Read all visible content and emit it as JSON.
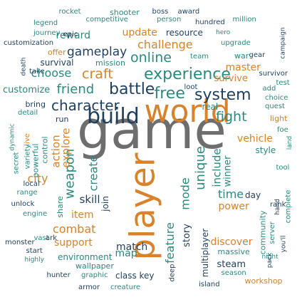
{
  "palette": {
    "teal": "#2a8a7e",
    "orange": "#d9822b",
    "slate": "#1f3f5f",
    "gray": "#6e6e6e"
  },
  "words": [
    {
      "text": "game",
      "color": "gray"
    },
    {
      "text": "world",
      "color": "orange"
    },
    {
      "text": "player",
      "color": "orange"
    },
    {
      "text": "build",
      "color": "slate"
    },
    {
      "text": "experience",
      "color": "teal"
    },
    {
      "text": "system",
      "color": "slate"
    },
    {
      "text": "free",
      "color": "teal"
    },
    {
      "text": "battle",
      "color": "slate"
    },
    {
      "text": "character",
      "color": "slate"
    },
    {
      "text": "friend",
      "color": "teal"
    },
    {
      "text": "customize",
      "color": "teal"
    },
    {
      "text": "craft",
      "color": "orange"
    },
    {
      "text": "choose",
      "color": "teal"
    },
    {
      "text": "online",
      "color": "teal"
    },
    {
      "text": "challenge",
      "color": "orange"
    },
    {
      "text": "gameplay",
      "color": "slate"
    },
    {
      "text": "reward",
      "color": "teal"
    },
    {
      "text": "update",
      "color": "orange"
    },
    {
      "text": "resource",
      "color": "slate"
    },
    {
      "text": "shooter",
      "color": "teal"
    },
    {
      "text": "boss",
      "color": "slate"
    },
    {
      "text": "award",
      "color": "slate"
    },
    {
      "text": "rocket",
      "color": "teal"
    },
    {
      "text": "legend",
      "color": "teal"
    },
    {
      "text": "journey",
      "color": "teal"
    },
    {
      "text": "epic",
      "color": "slate"
    },
    {
      "text": "competitive",
      "color": "teal"
    },
    {
      "text": "person",
      "color": "teal"
    },
    {
      "text": "hundred",
      "color": "slate"
    },
    {
      "text": "million",
      "color": "teal"
    },
    {
      "text": "customization",
      "color": "slate"
    },
    {
      "text": "offer",
      "color": "orange"
    },
    {
      "text": "survival",
      "color": "slate"
    },
    {
      "text": "mission",
      "color": "teal"
    },
    {
      "text": "hero",
      "color": "teal"
    },
    {
      "text": "team",
      "color": "teal"
    },
    {
      "text": "war",
      "color": "teal"
    },
    {
      "text": "gear",
      "color": "slate"
    },
    {
      "text": "upgrade",
      "color": "teal"
    },
    {
      "text": "master",
      "color": "orange"
    },
    {
      "text": "survive",
      "color": "orange"
    },
    {
      "text": "survivor",
      "color": "slate"
    },
    {
      "text": "campaign",
      "color": "slate"
    },
    {
      "text": "take",
      "color": "slate"
    },
    {
      "text": "death",
      "color": "slate"
    },
    {
      "text": "loot",
      "color": "slate"
    },
    {
      "text": "fight",
      "color": "teal"
    },
    {
      "text": "real",
      "color": "teal"
    },
    {
      "text": "bring",
      "color": "slate"
    },
    {
      "text": "detail",
      "color": "teal"
    },
    {
      "text": "run",
      "color": "slate"
    },
    {
      "text": "add",
      "color": "teal"
    },
    {
      "text": "choice",
      "color": "teal"
    },
    {
      "text": "quest",
      "color": "teal"
    },
    {
      "text": "test",
      "color": "teal"
    },
    {
      "text": "light",
      "color": "orange"
    },
    {
      "text": "vehicle",
      "color": "orange"
    },
    {
      "text": "style",
      "color": "teal"
    },
    {
      "text": "tool",
      "color": "teal"
    },
    {
      "text": "land",
      "color": "teal"
    },
    {
      "text": "foe",
      "color": "teal"
    },
    {
      "text": "weapon",
      "color": "teal"
    },
    {
      "text": "explore",
      "color": "orange"
    },
    {
      "text": "action",
      "color": "orange"
    },
    {
      "text": "control",
      "color": "teal"
    },
    {
      "text": "powerful",
      "color": "teal"
    },
    {
      "text": "variety",
      "color": "teal"
    },
    {
      "text": "live",
      "color": "orange"
    },
    {
      "text": "secret",
      "color": "teal"
    },
    {
      "text": "dynamic",
      "color": "teal"
    },
    {
      "text": "rank",
      "color": "slate"
    },
    {
      "text": "city",
      "color": "orange"
    },
    {
      "text": "unique",
      "color": "teal"
    },
    {
      "text": "include",
      "color": "teal"
    },
    {
      "text": "winner",
      "color": "teal"
    },
    {
      "text": "mode",
      "color": "teal"
    },
    {
      "text": "create",
      "color": "teal"
    },
    {
      "text": "skill",
      "color": "slate"
    },
    {
      "text": "share",
      "color": "teal"
    },
    {
      "text": "join",
      "color": "slate"
    },
    {
      "text": "local",
      "color": "slate"
    },
    {
      "text": "range",
      "color": "teal"
    },
    {
      "text": "unlock",
      "color": "slate"
    },
    {
      "text": "item",
      "color": "orange"
    },
    {
      "text": "engine",
      "color": "teal"
    },
    {
      "text": "combat",
      "color": "orange"
    },
    {
      "text": "time",
      "color": "teal"
    },
    {
      "text": "power",
      "color": "orange"
    },
    {
      "text": "day",
      "color": "slate"
    },
    {
      "text": "feature",
      "color": "teal"
    },
    {
      "text": "story",
      "color": "slate"
    },
    {
      "text": "multiplayer",
      "color": "slate"
    },
    {
      "text": "community",
      "color": "teal"
    },
    {
      "text": "server",
      "color": "teal"
    },
    {
      "text": "hand",
      "color": "slate"
    },
    {
      "text": "complete",
      "color": "teal"
    },
    {
      "text": "monster",
      "color": "slate"
    },
    {
      "text": "start",
      "color": "slate"
    },
    {
      "text": "vast",
      "color": "teal"
    },
    {
      "text": "highly",
      "color": "teal"
    },
    {
      "text": "ark",
      "color": "slate"
    },
    {
      "text": "support",
      "color": "orange"
    },
    {
      "text": "environment",
      "color": "teal"
    },
    {
      "text": "map",
      "color": "teal"
    },
    {
      "text": "match",
      "color": "slate"
    },
    {
      "text": "wallpaper",
      "color": "teal"
    },
    {
      "text": "discover",
      "color": "orange"
    },
    {
      "text": "massive",
      "color": "teal"
    },
    {
      "text": "steam",
      "color": "slate"
    },
    {
      "text": "season",
      "color": "teal"
    },
    {
      "text": "night",
      "color": "teal"
    },
    {
      "text": "you'll",
      "color": "slate"
    },
    {
      "text": "pack",
      "color": "slate"
    },
    {
      "text": "hunter",
      "color": "slate"
    },
    {
      "text": "graphic",
      "color": "teal"
    },
    {
      "text": "class",
      "color": "slate"
    },
    {
      "text": "key",
      "color": "slate"
    },
    {
      "text": "armor",
      "color": "slate"
    },
    {
      "text": "creature",
      "color": "teal"
    },
    {
      "text": "deep",
      "color": "slate"
    },
    {
      "text": "island",
      "color": "slate"
    },
    {
      "text": "workshop",
      "color": "orange"
    }
  ]
}
